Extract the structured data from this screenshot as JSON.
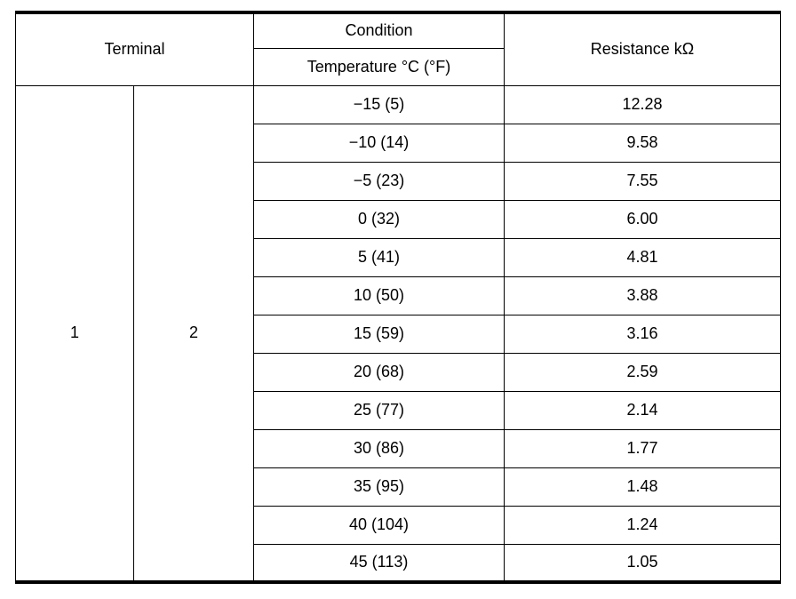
{
  "table": {
    "header": {
      "terminal": "Terminal",
      "condition": "Condition",
      "temperature": "Temperature °C (°F)",
      "resistance": "Resistance kΩ"
    },
    "terminal_columns": [
      "1",
      "2"
    ],
    "rows": [
      {
        "temp": "−15 (5)",
        "res": "12.28"
      },
      {
        "temp": "−10 (14)",
        "res": "9.58"
      },
      {
        "temp": "−5 (23)",
        "res": "7.55"
      },
      {
        "temp": "0 (32)",
        "res": "6.00"
      },
      {
        "temp": "5 (41)",
        "res": "4.81"
      },
      {
        "temp": "10 (50)",
        "res": "3.88"
      },
      {
        "temp": "15 (59)",
        "res": "3.16"
      },
      {
        "temp": "20 (68)",
        "res": "2.59"
      },
      {
        "temp": "25 (77)",
        "res": "2.14"
      },
      {
        "temp": "30 (86)",
        "res": "1.77"
      },
      {
        "temp": "35 (95)",
        "res": "1.48"
      },
      {
        "temp": "40 (104)",
        "res": "1.24"
      },
      {
        "temp": "45 (113)",
        "res": "1.05"
      }
    ]
  }
}
